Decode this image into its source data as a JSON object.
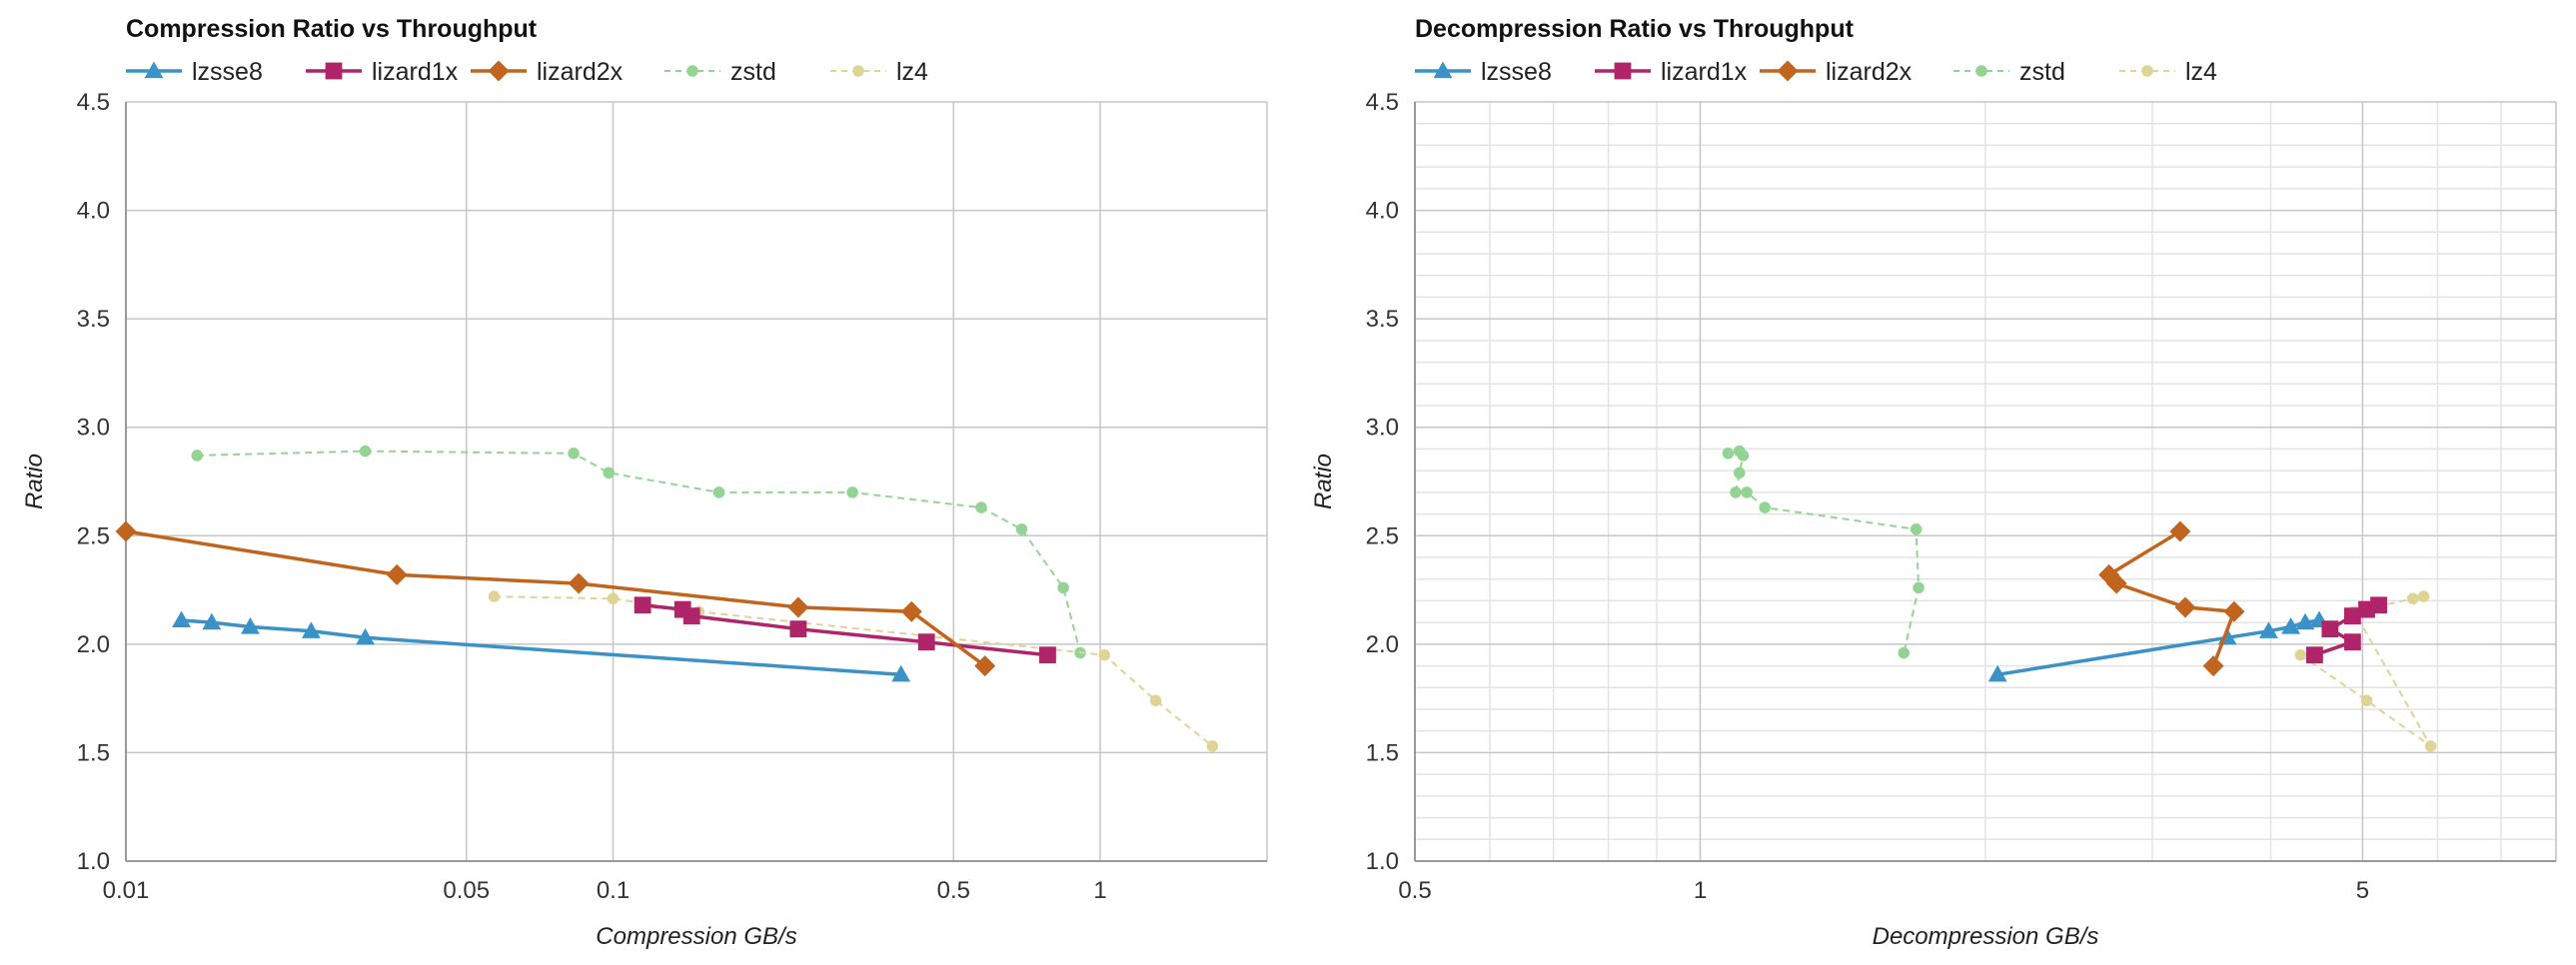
{
  "colors": {
    "lzsse8": "#3a92c6",
    "lizard1x": "#b0246a",
    "lizard2x": "#c0641e",
    "zstd": "#93d495",
    "lz4": "#ddd495",
    "grid_major": "#c6c6c6",
    "grid_minor": "#e3e3e3",
    "axis": "#999999"
  },
  "chart_data": [
    {
      "type": "line",
      "title": "Compression Ratio vs Throughput",
      "xlabel": "Compression GB/s",
      "ylabel": "Ratio",
      "xscale": "log",
      "xlim": [
        0.01,
        2.2
      ],
      "ylim": [
        1.0,
        4.5
      ],
      "xticks": [
        {
          "value": 0.01,
          "label": "0.01"
        },
        {
          "value": 0.05,
          "label": "0.05"
        },
        {
          "value": 0.1,
          "label": "0.1"
        },
        {
          "value": 0.5,
          "label": "0.5"
        },
        {
          "value": 1,
          "label": "1"
        }
      ],
      "yticks": [
        {
          "value": 1.0,
          "label": "1.0"
        },
        {
          "value": 1.5,
          "label": "1.5"
        },
        {
          "value": 2.0,
          "label": "2.0"
        },
        {
          "value": 2.5,
          "label": "2.5"
        },
        {
          "value": 3.0,
          "label": "3.0"
        },
        {
          "value": 3.5,
          "label": "3.5"
        },
        {
          "value": 4.0,
          "label": "4.0"
        },
        {
          "value": 4.5,
          "label": "4.5"
        }
      ],
      "x_major_grid": [
        0.01,
        0.05,
        0.1,
        0.5,
        1
      ],
      "x_minor_grid": [],
      "y_minor_grid": false,
      "legend_position": "top-left",
      "series": [
        {
          "name": "lzsse8",
          "marker": "triangle",
          "style": "solid",
          "points": [
            [
              0.013,
              2.11
            ],
            [
              0.015,
              2.1
            ],
            [
              0.018,
              2.08
            ],
            [
              0.024,
              2.06
            ],
            [
              0.031,
              2.03
            ],
            [
              0.39,
              1.86
            ]
          ]
        },
        {
          "name": "lizard1x",
          "marker": "square",
          "style": "solid",
          "points": [
            [
              0.115,
              2.18
            ],
            [
              0.139,
              2.16
            ],
            [
              0.145,
              2.13
            ],
            [
              0.24,
              2.07
            ],
            [
              0.44,
              2.01
            ],
            [
              0.78,
              1.95
            ]
          ]
        },
        {
          "name": "lizard2x",
          "marker": "diamond",
          "style": "solid",
          "points": [
            [
              0.01,
              2.52
            ],
            [
              0.036,
              2.32
            ],
            [
              0.085,
              2.28
            ],
            [
              0.24,
              2.17
            ],
            [
              0.41,
              2.15
            ],
            [
              0.58,
              1.9
            ]
          ]
        },
        {
          "name": "zstd",
          "marker": "circle",
          "style": "dashed",
          "points": [
            [
              0.014,
              2.87
            ],
            [
              0.031,
              2.89
            ],
            [
              0.083,
              2.88
            ],
            [
              0.098,
              2.79
            ],
            [
              0.165,
              2.7
            ],
            [
              0.31,
              2.7
            ],
            [
              0.57,
              2.63
            ],
            [
              0.69,
              2.53
            ],
            [
              0.84,
              2.26
            ],
            [
              0.91,
              1.96
            ]
          ]
        },
        {
          "name": "lz4",
          "marker": "circle",
          "style": "dashed",
          "points": [
            [
              0.057,
              2.22
            ],
            [
              0.1,
              2.21
            ],
            [
              0.15,
              2.15
            ],
            [
              1.02,
              1.95
            ],
            [
              1.3,
              1.74
            ],
            [
              1.7,
              1.53
            ]
          ]
        }
      ]
    },
    {
      "type": "line",
      "title": "Decompression Ratio vs Throughput",
      "xlabel": "Decompression GB/s",
      "ylabel": "Ratio",
      "xscale": "log",
      "xlim": [
        0.5,
        8
      ],
      "ylim": [
        1.0,
        4.5
      ],
      "xticks": [
        {
          "value": 0.5,
          "label": "0.5"
        },
        {
          "value": 1,
          "label": "1"
        },
        {
          "value": 5,
          "label": "5"
        }
      ],
      "yticks": [
        {
          "value": 1.0,
          "label": "1.0"
        },
        {
          "value": 1.5,
          "label": "1.5"
        },
        {
          "value": 2.0,
          "label": "2.0"
        },
        {
          "value": 2.5,
          "label": "2.5"
        },
        {
          "value": 3.0,
          "label": "3.0"
        },
        {
          "value": 3.5,
          "label": "3.5"
        },
        {
          "value": 4.0,
          "label": "4.0"
        },
        {
          "value": 4.5,
          "label": "4.5"
        }
      ],
      "x_major_grid": [
        1,
        5
      ],
      "x_minor_grid": [
        0.6,
        0.7,
        0.8,
        0.9,
        2,
        3,
        4,
        6,
        7,
        8
      ],
      "y_minor_grid": true,
      "legend_position": "top-left",
      "series": [
        {
          "name": "lzsse8",
          "marker": "triangle",
          "style": "solid",
          "points": [
            [
              2.06,
              1.86
            ],
            [
              3.6,
              2.03
            ],
            [
              3.98,
              2.06
            ],
            [
              4.2,
              2.08
            ],
            [
              4.35,
              2.1
            ],
            [
              4.5,
              2.11
            ]
          ]
        },
        {
          "name": "lizard1x",
          "marker": "square",
          "style": "solid",
          "points": [
            [
              4.45,
              1.95
            ],
            [
              4.88,
              2.01
            ],
            [
              4.62,
              2.07
            ],
            [
              4.88,
              2.13
            ],
            [
              5.05,
              2.16
            ],
            [
              5.2,
              2.18
            ]
          ]
        },
        {
          "name": "lizard2x",
          "marker": "diamond",
          "style": "solid",
          "points": [
            [
              3.21,
              2.52
            ],
            [
              2.7,
              2.32
            ],
            [
              2.75,
              2.28
            ],
            [
              3.25,
              2.17
            ],
            [
              3.66,
              2.15
            ],
            [
              3.48,
              1.9
            ]
          ]
        },
        {
          "name": "zstd",
          "marker": "circle",
          "style": "dashed",
          "points": [
            [
              1.07,
              2.88
            ],
            [
              1.1,
              2.89
            ],
            [
              1.11,
              2.87
            ],
            [
              1.1,
              2.79
            ],
            [
              1.09,
              2.7
            ],
            [
              1.12,
              2.7
            ],
            [
              1.17,
              2.63
            ],
            [
              1.69,
              2.53
            ],
            [
              1.7,
              2.26
            ],
            [
              1.64,
              1.96
            ]
          ]
        },
        {
          "name": "lz4",
          "marker": "circle",
          "style": "dashed",
          "points": [
            [
              4.3,
              1.95
            ],
            [
              5.05,
              1.74
            ],
            [
              5.9,
              1.53
            ],
            [
              4.9,
              2.15
            ],
            [
              5.65,
              2.21
            ],
            [
              5.8,
              2.22
            ]
          ]
        }
      ]
    }
  ]
}
